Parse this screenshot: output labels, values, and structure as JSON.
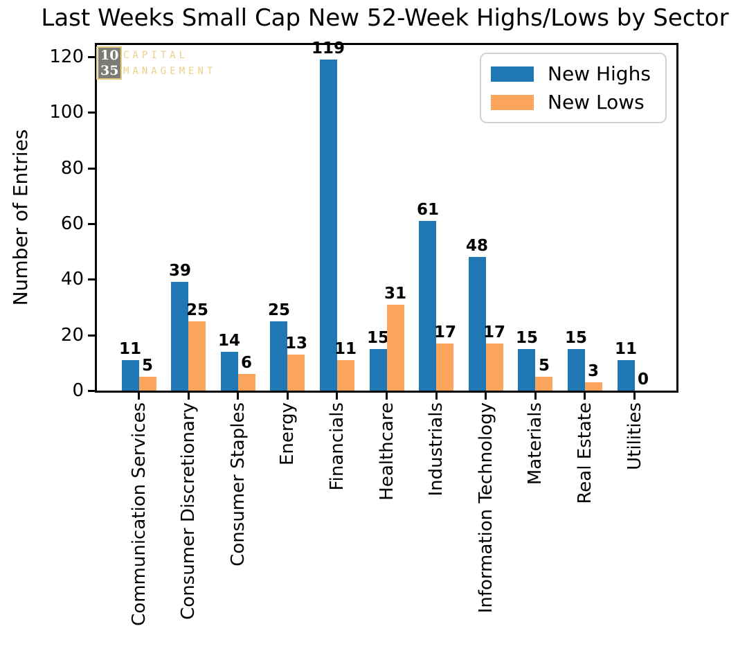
{
  "figure": {
    "title": "Last Weeks Small Cap New 52-Week Highs/Lows by Sector"
  },
  "watermark": {
    "number_top": "10",
    "number_bottom": "35",
    "label_line1": "CAPITAL",
    "label_line2": "MANAGEMENT",
    "gold_color": "#e4c87e",
    "gray_box_color": "#7c7b74"
  },
  "chart_data": {
    "type": "bar",
    "title": "Last Weeks Small Cap New 52-Week Highs/Lows by Sector",
    "xlabel": "",
    "ylabel": "Number of Entries",
    "categories": [
      "Communication Services",
      "Consumer Discretionary",
      "Consumer Staples",
      "Energy",
      "Financials",
      "Healthcare",
      "Industrials",
      "Information Technology",
      "Materials",
      "Real Estate",
      "Utilities"
    ],
    "series": [
      {
        "name": "New Highs",
        "color": "#1f77b4",
        "values": [
          11,
          39,
          14,
          25,
          119,
          15,
          61,
          48,
          15,
          15,
          11
        ]
      },
      {
        "name": "New Lows",
        "color": "#fba55c",
        "values": [
          5,
          25,
          6,
          13,
          11,
          31,
          17,
          17,
          5,
          3,
          0
        ]
      }
    ],
    "yticks": [
      0,
      20,
      40,
      60,
      80,
      100,
      120
    ],
    "ylim": [
      0,
      125
    ],
    "x_tick_rotation": 90,
    "grid": false,
    "bar_value_labels": true,
    "legend": {
      "position": "upper right",
      "entries": [
        "New Highs",
        "New Lows"
      ]
    }
  }
}
